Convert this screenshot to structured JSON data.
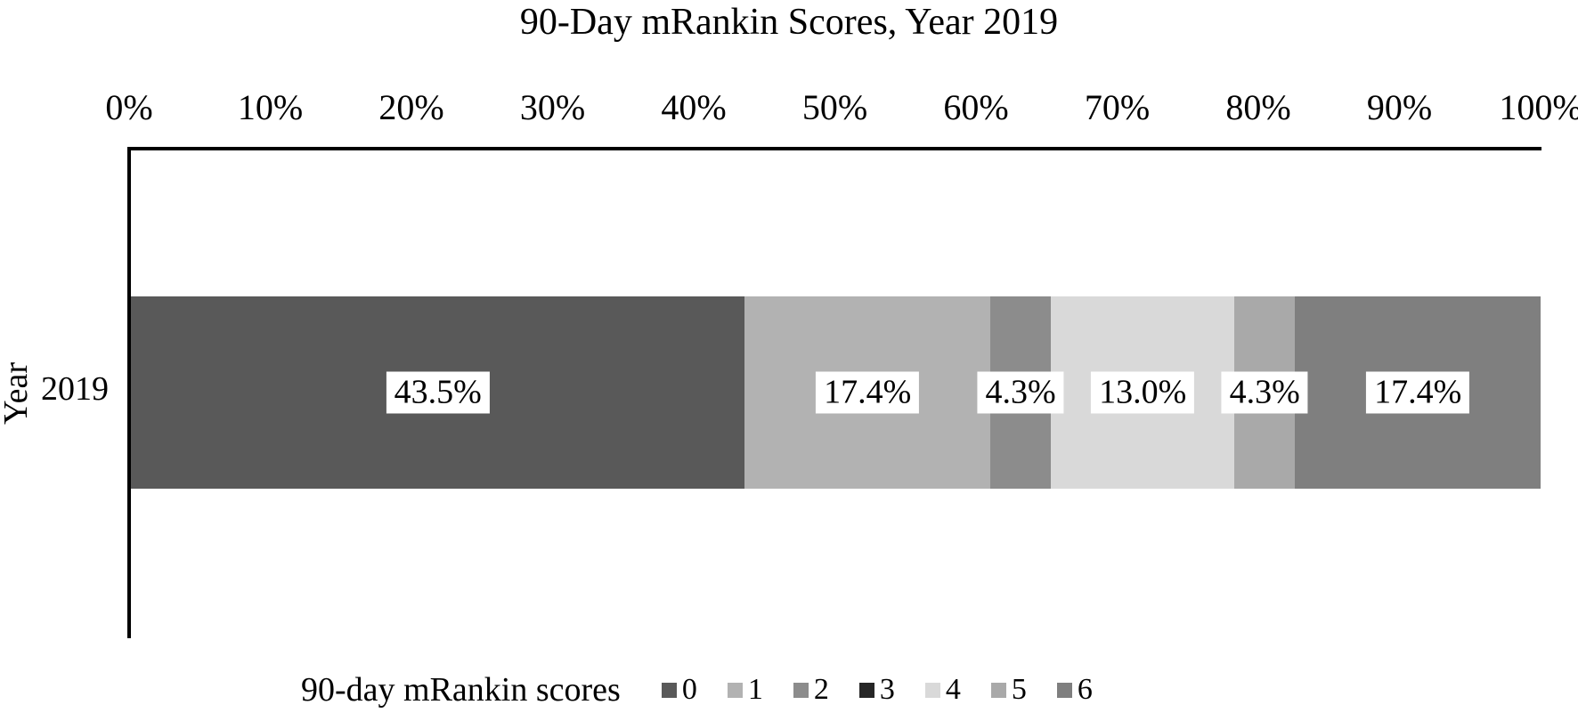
{
  "title": "90-Day mRankin Scores, Year 2019",
  "x_axis": {
    "tick_labels": [
      "0%",
      "10%",
      "20%",
      "30%",
      "40%",
      "50%",
      "60%",
      "70%",
      "80%",
      "90%",
      "100%"
    ]
  },
  "y_axis": {
    "title": "Year",
    "category": "2019"
  },
  "legend": {
    "title": "90-day mRankin scores",
    "items": [
      {
        "label": "0",
        "color": "#595959"
      },
      {
        "label": "1",
        "color": "#b2b2b2"
      },
      {
        "label": "2",
        "color": "#8c8c8c"
      },
      {
        "label": "3",
        "color": "#262626"
      },
      {
        "label": "4",
        "color": "#d9d9d9"
      },
      {
        "label": "5",
        "color": "#a9a9a9"
      },
      {
        "label": "6",
        "color": "#7f7f7f"
      }
    ]
  },
  "chart_data": {
    "type": "bar",
    "orientation": "horizontal",
    "stacked": true,
    "title": "90-Day mRankin Scores, Year 2019",
    "categories": [
      "2019"
    ],
    "series": [
      {
        "name": "0",
        "values": [
          43.5
        ],
        "label": "43.5%",
        "color": "#595959"
      },
      {
        "name": "1",
        "values": [
          17.4
        ],
        "label": "17.4%",
        "color": "#b2b2b2"
      },
      {
        "name": "2",
        "values": [
          4.3
        ],
        "label": "4.3%",
        "color": "#8c8c8c"
      },
      {
        "name": "3",
        "values": [
          0
        ],
        "label": "",
        "color": "#262626"
      },
      {
        "name": "4",
        "values": [
          13.0
        ],
        "label": "13.0%",
        "color": "#d9d9d9"
      },
      {
        "name": "5",
        "values": [
          4.3
        ],
        "label": "4.3%",
        "color": "#a9a9a9"
      },
      {
        "name": "6",
        "values": [
          17.4
        ],
        "label": "17.4%",
        "color": "#7f7f7f"
      }
    ],
    "xlabel": "",
    "ylabel": "Year",
    "xlim": [
      0,
      100
    ],
    "x_tick_step": 10,
    "grid": false,
    "data_labels_visible": true,
    "legend_title": "90-day mRankin scores",
    "legend_position": "bottom"
  }
}
